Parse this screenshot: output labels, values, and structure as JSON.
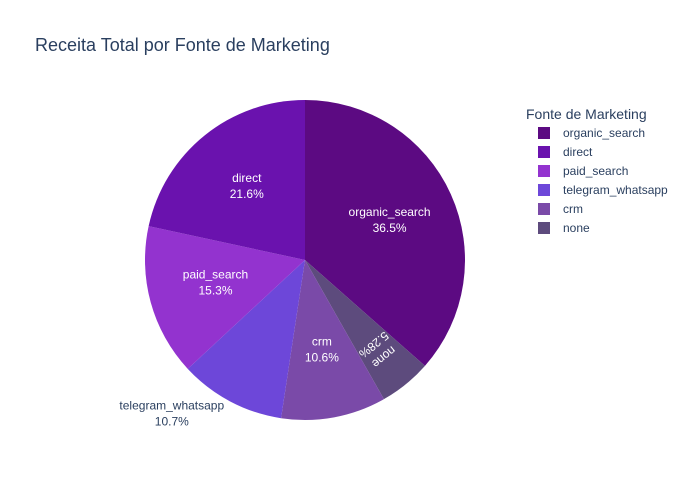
{
  "chart_data": {
    "type": "pie",
    "title": "Receita Total por Fonte de Marketing",
    "legend_title": "Fonte de Marketing",
    "legend_position": "right",
    "slices": [
      {
        "label": "organic_search",
        "percent": 36.5,
        "percent_text": "36.5%",
        "color": "#5c0a82",
        "label_placement": "inside"
      },
      {
        "label": "none",
        "percent": 5.28,
        "percent_text": "5.28%",
        "color": "#5d4b7d",
        "label_placement": "inside-rotated"
      },
      {
        "label": "crm",
        "percent": 10.6,
        "percent_text": "10.6%",
        "color": "#7a4aa8",
        "label_placement": "inside"
      },
      {
        "label": "telegram_whatsapp",
        "percent": 10.7,
        "percent_text": "10.7%",
        "color": "#6d47d9",
        "label_placement": "outside"
      },
      {
        "label": "paid_search",
        "percent": 15.3,
        "percent_text": "15.3%",
        "color": "#9333cf",
        "label_placement": "inside"
      },
      {
        "label": "direct",
        "percent": 21.6,
        "percent_text": "21.6%",
        "color": "#6a12ae",
        "label_placement": "inside"
      }
    ],
    "legend_order": [
      "organic_search",
      "direct",
      "paid_search",
      "telegram_whatsapp",
      "crm",
      "none"
    ]
  }
}
